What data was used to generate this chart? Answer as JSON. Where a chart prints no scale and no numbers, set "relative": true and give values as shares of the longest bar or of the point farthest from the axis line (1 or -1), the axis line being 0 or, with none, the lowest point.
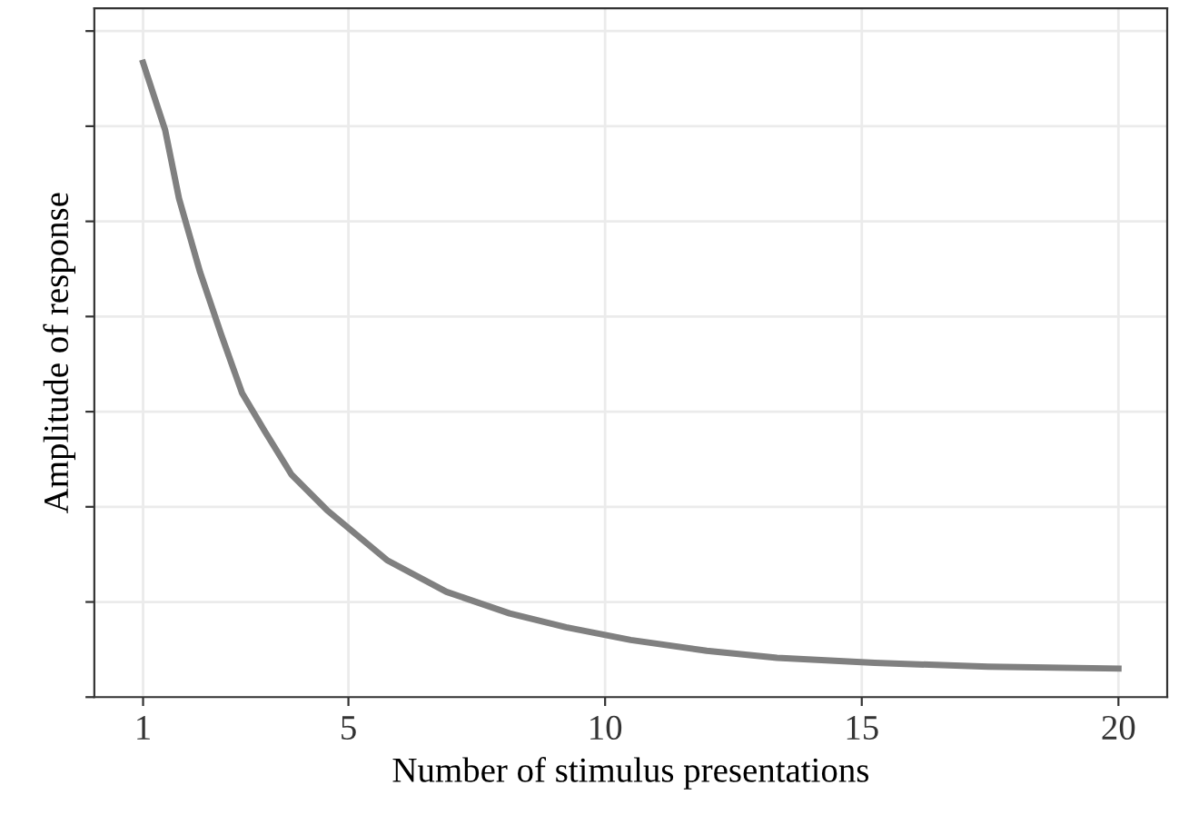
{
  "chart_data": {
    "type": "line",
    "xlabel": "Number of stimulus presentations",
    "ylabel": "Amplitude of response",
    "relative": true,
    "x": [
      1,
      1.43,
      1.7,
      2.11,
      2.52,
      2.93,
      3.38,
      3.89,
      4.58,
      5.75,
      6.91,
      8.14,
      9.24,
      10.5,
      11.98,
      13.35,
      15.25,
      17.46,
      20
    ],
    "series": [
      {
        "color": "#808080",
        "values": [
          1.0,
          0.894,
          0.786,
          0.67,
          0.572,
          0.479,
          0.418,
          0.351,
          0.295,
          0.216,
          0.166,
          0.132,
          0.11,
          0.09,
          0.073,
          0.062,
          0.054,
          0.048,
          0.045
        ]
      }
    ],
    "xlim": [
      0.05,
      20.95
    ],
    "xticks": [
      1,
      5,
      10,
      15,
      20
    ],
    "grid": true,
    "legend": false,
    "marker": "none",
    "line_style": "solid"
  }
}
